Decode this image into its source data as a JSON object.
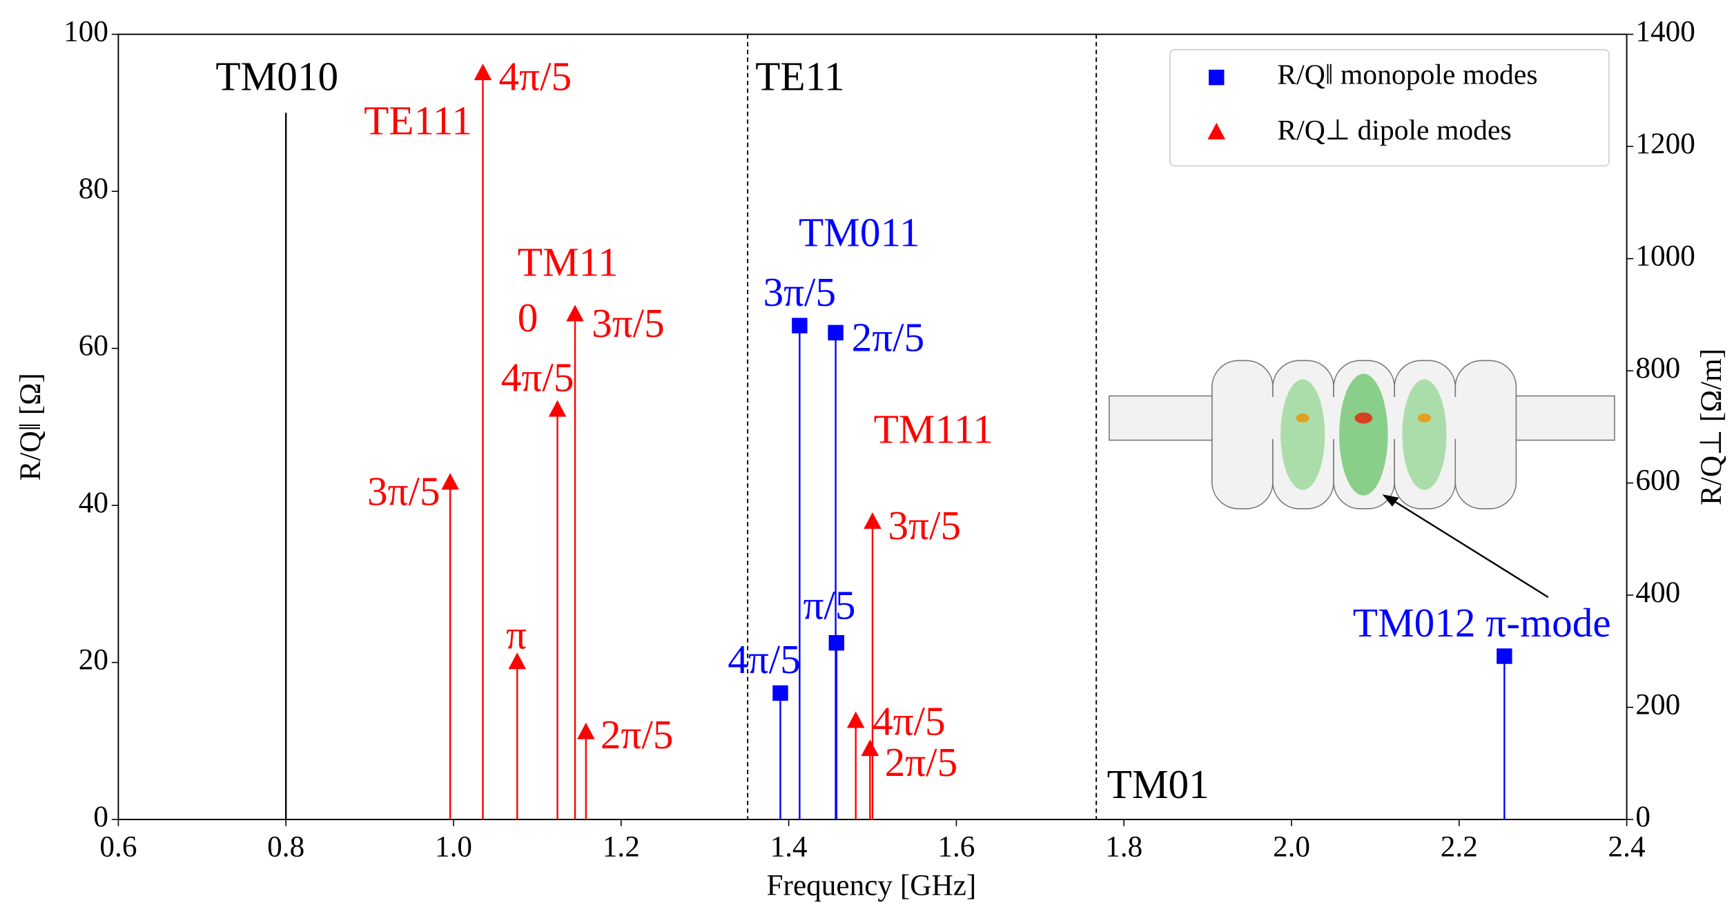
{
  "chart_data": {
    "type": "stem",
    "xlabel": "Frequency [GHz]",
    "ylabel": "R/Q‖ [Ω]",
    "y2label": "R/Q⊥ [Ω/m]",
    "xlim": [
      0.6,
      2.4
    ],
    "xticks": [
      0.6,
      0.8,
      {
        "value": 1,
        "label": "1.0"
      },
      1.2,
      1.4,
      1.6,
      1.8,
      {
        "value": 2,
        "label": "2.0"
      },
      2.2,
      2.4
    ],
    "ylim": [
      0,
      100
    ],
    "yticks": [
      0,
      20,
      40,
      60,
      80,
      100
    ],
    "y2lim": [
      0,
      1400
    ],
    "y2ticks": [
      0,
      200,
      400,
      600,
      800,
      1000,
      1200,
      1400
    ],
    "legend": "upper right",
    "series": [
      {
        "name": "R/Q‖ monopole modes",
        "color": "#0000ff",
        "marker": "square",
        "x": [
          1.39,
          1.413,
          1.456,
          1.457,
          2.254
        ],
        "values": [
          16.1,
          62.9,
          62.0,
          22.5,
          20.8
        ],
        "labels": [
          "4π/5",
          "3π/5",
          "2π/5",
          "π/5",
          "TM012 π-mode"
        ]
      },
      {
        "name": "R/Q⊥ dipole modes",
        "color": "#ff0000",
        "marker": "triangle",
        "axis": "y2",
        "x": [
          0.996,
          1.035,
          1.076,
          1.124,
          1.145,
          1.158,
          1.48,
          1.497,
          1.5
        ],
        "values": [
          600,
          1330,
          280,
          730,
          900,
          155,
          175,
          125,
          530
        ],
        "labels": [
          "3π/5",
          "4π/5",
          "π",
          "4π/5",
          "3π/5",
          "2π/5",
          "4π/5",
          "2π/5",
          "3π/5"
        ]
      }
    ],
    "reference": {
      "label": "TM010",
      "x": 0.8,
      "value": 90,
      "color": "#000000"
    },
    "dividers": [
      {
        "x": 1.351,
        "label": "TE11"
      },
      {
        "x": 1.767,
        "label": "TM01"
      }
    ],
    "annotations": [
      {
        "text": "TE111",
        "color": "#ff0000"
      },
      {
        "text": "TM11",
        "color": "#ff0000"
      },
      {
        "text": "0",
        "color": "#ff0000"
      },
      {
        "text": "TM011",
        "color": "#0000ff"
      },
      {
        "text": "TM111",
        "color": "#ff0000"
      }
    ]
  }
}
